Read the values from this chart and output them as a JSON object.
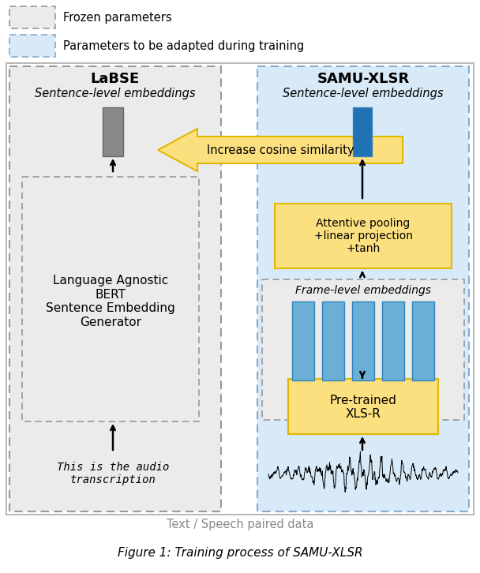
{
  "bg_color": "#ffffff",
  "legend_frozen_color": "#ebebeb",
  "legend_adapt_color": "#d8eaf8",
  "legend_frozen_border": "#999999",
  "legend_adapt_border": "#88aacc",
  "yellow_box_color": "#fce080",
  "yellow_box_border": "#e0b800",
  "labse_title": "LaBSE",
  "labse_subtitle": "Sentence-level embeddings",
  "labse_inner_text": "Language Agnostic\nBERT\nSentence Embedding\nGenerator",
  "samu_title": "SAMU-XLSR",
  "samu_subtitle": "Sentence-level embeddings",
  "arrow_label": "Increase cosine similarity",
  "attpool_label": "Attentive pooling\n+linear projection\n+tanh",
  "frame_label": "Frame-level embeddings",
  "pretrained_label": "Pre-trained\nXLS-R",
  "text_input": "This is the audio\ntranscription",
  "bottom_label": "Text / Speech paired data",
  "caption": "Figure 1: Training process of SAMU-XLSR",
  "frozen_legend_label": "Frozen parameters",
  "adapt_legend_label": "Parameters to be adapted during training",
  "bar_blue_face": "#6baed6",
  "bar_blue_edge": "#3182bd",
  "embed_blue_face": "#2171b5",
  "embed_gray_face": "#888888",
  "embed_gray_edge": "#666666"
}
